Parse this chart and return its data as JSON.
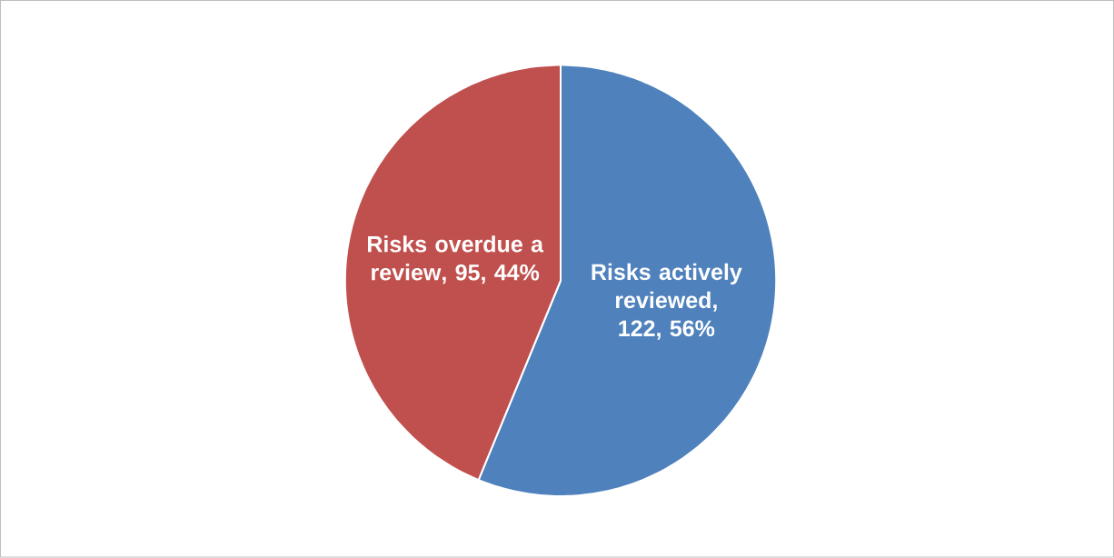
{
  "chart_data": {
    "type": "pie",
    "categories": [
      "Risks actively reviewed",
      "Risks overdue a review"
    ],
    "values": [
      122,
      95
    ],
    "colors": [
      "#4f81bd",
      "#c0504d"
    ],
    "value_labels": [
      ", 122, 56%",
      ", 95, 44%"
    ]
  }
}
